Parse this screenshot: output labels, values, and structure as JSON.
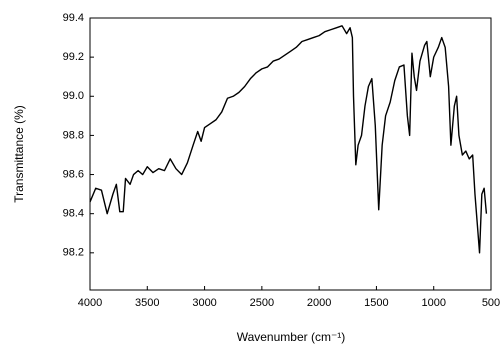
{
  "chart_data": {
    "type": "line",
    "xlabel": "Wavenumber (cm⁻¹)",
    "ylabel": "Transmittance (%)",
    "x": [
      4000,
      3950,
      3900,
      3850,
      3800,
      3770,
      3740,
      3710,
      3690,
      3650,
      3620,
      3580,
      3540,
      3500,
      3450,
      3400,
      3350,
      3300,
      3250,
      3200,
      3150,
      3100,
      3060,
      3030,
      3000,
      2950,
      2900,
      2850,
      2800,
      2750,
      2700,
      2650,
      2600,
      2550,
      2500,
      2450,
      2400,
      2350,
      2300,
      2250,
      2200,
      2150,
      2100,
      2050,
      2000,
      1950,
      1900,
      1850,
      1800,
      1760,
      1730,
      1710,
      1700,
      1680,
      1660,
      1630,
      1600,
      1570,
      1540,
      1510,
      1480,
      1450,
      1420,
      1380,
      1340,
      1300,
      1260,
      1230,
      1210,
      1190,
      1170,
      1150,
      1120,
      1080,
      1060,
      1030,
      1000,
      960,
      930,
      900,
      870,
      850,
      820,
      800,
      780,
      750,
      720,
      690,
      660,
      640,
      620,
      600,
      580,
      560,
      540
    ],
    "series": [
      {
        "color": "#000000",
        "values": [
          98.46,
          98.53,
          98.52,
          98.4,
          98.5,
          98.55,
          98.41,
          98.41,
          98.58,
          98.55,
          98.6,
          98.62,
          98.6,
          98.64,
          98.61,
          98.63,
          98.62,
          98.68,
          98.63,
          98.6,
          98.66,
          98.75,
          98.82,
          98.77,
          98.84,
          98.86,
          98.88,
          98.92,
          98.99,
          99.0,
          99.02,
          99.05,
          99.09,
          99.12,
          99.14,
          99.15,
          99.18,
          99.19,
          99.21,
          99.23,
          99.25,
          99.28,
          99.29,
          99.3,
          99.31,
          99.33,
          99.34,
          99.35,
          99.36,
          99.32,
          99.35,
          99.3,
          99.0,
          98.65,
          98.75,
          98.8,
          98.95,
          99.05,
          99.09,
          98.85,
          98.42,
          98.75,
          98.9,
          98.97,
          99.08,
          99.15,
          99.16,
          98.9,
          98.8,
          99.22,
          99.1,
          99.03,
          99.18,
          99.26,
          99.28,
          99.1,
          99.2,
          99.25,
          99.3,
          99.25,
          99.05,
          98.75,
          98.95,
          99.0,
          98.8,
          98.7,
          98.72,
          98.68,
          98.7,
          98.5,
          98.35,
          98.2,
          98.5,
          98.53,
          98.4
        ]
      }
    ],
    "xlim": [
      4000,
      500
    ],
    "xticks": [
      4000,
      3500,
      3000,
      2500,
      2000,
      1500,
      1000,
      500
    ],
    "ylim": [
      98.01,
      99.4
    ],
    "yticks": [
      {
        "value": 98.2,
        "label": "98.2"
      },
      {
        "value": 98.4,
        "label": "98.4"
      },
      {
        "value": 98.6,
        "label": "98.6"
      },
      {
        "value": 98.8,
        "label": "98.8"
      },
      {
        "value": 99,
        "label": "99.0"
      },
      {
        "value": 99.2,
        "label": "99.2"
      },
      {
        "value": 99.4,
        "label": "99.4"
      }
    ]
  }
}
